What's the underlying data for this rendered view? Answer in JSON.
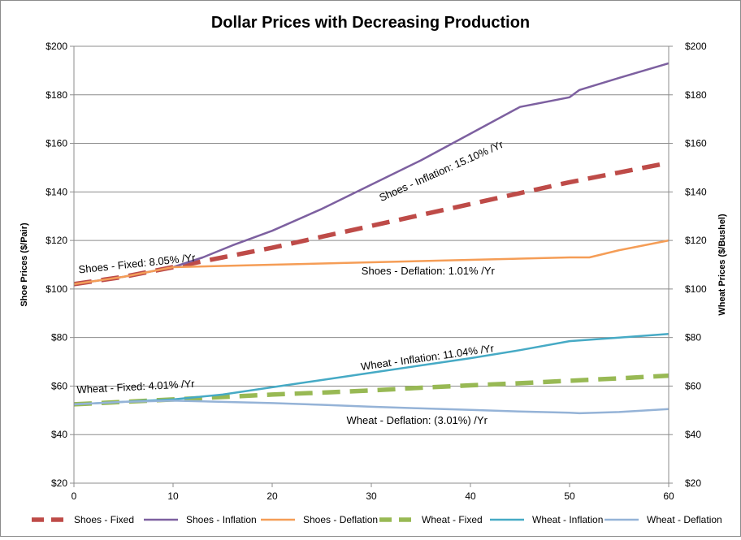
{
  "chart_data": {
    "type": "line",
    "title": "Dollar Prices with Decreasing Production",
    "ylabel_left": "Shoe Prices ($/Pair)",
    "ylabel_right": "Wheat Prices ($/Bushel)",
    "xlabel": "",
    "xlim": [
      0,
      60
    ],
    "ylim": [
      20,
      200
    ],
    "x_ticks": [
      "0",
      "10",
      "20",
      "30",
      "40",
      "50",
      "60"
    ],
    "y_ticks_left": [
      "$20",
      "$40",
      "$60",
      "$80",
      "$100",
      "$120",
      "$140",
      "$160",
      "$180",
      "$200"
    ],
    "y_ticks_right": [
      "$20",
      "$40",
      "$60",
      "$80",
      "$100",
      "$120",
      "$140",
      "$160",
      "$180",
      "$200"
    ],
    "grid": "horizontal",
    "legend_position": "bottom",
    "colors": {
      "shoes_fixed": "#be4b48",
      "shoes_inflation": "#7d60a0",
      "shoes_deflation": "#f59d56",
      "wheat_fixed": "#98b954",
      "wheat_inflation": "#46aac5",
      "wheat_deflation": "#95b3d7"
    },
    "series": [
      {
        "name": "Shoes - Fixed",
        "key": "shoes_fixed",
        "dashed": true,
        "x": [
          0,
          5,
          10,
          15,
          20,
          25,
          30,
          35,
          40,
          45,
          50,
          55,
          60
        ],
        "y": [
          102,
          105,
          109,
          113,
          117,
          121.5,
          126,
          130.5,
          135,
          139.5,
          144,
          148,
          152
        ]
      },
      {
        "name": "Shoes - Inflation",
        "key": "shoes_inflation",
        "dashed": false,
        "x": [
          0,
          5,
          10,
          13,
          16,
          20,
          25,
          30,
          35,
          40,
          45,
          50,
          51,
          55,
          60
        ],
        "y": [
          102,
          105,
          109,
          113,
          118,
          124,
          133,
          143,
          153,
          164,
          175,
          179,
          182,
          187,
          193
        ]
      },
      {
        "name": "Shoes - Deflation",
        "key": "shoes_deflation",
        "dashed": false,
        "x": [
          0,
          5,
          10,
          15,
          20,
          25,
          30,
          35,
          40,
          45,
          50,
          52,
          55,
          60
        ],
        "y": [
          102,
          105,
          109,
          109.5,
          110,
          110.5,
          111,
          111.5,
          112,
          112.5,
          113,
          113,
          116,
          120
        ]
      },
      {
        "name": "Wheat - Fixed",
        "key": "wheat_fixed",
        "dashed": true,
        "x": [
          0,
          5,
          10,
          15,
          20,
          25,
          30,
          35,
          40,
          45,
          50,
          55,
          60
        ],
        "y": [
          52.5,
          53.5,
          54.5,
          55.5,
          56.5,
          57.3,
          58.2,
          59.3,
          60.3,
          61.2,
          62.2,
          63.2,
          64.3
        ]
      },
      {
        "name": "Wheat - Inflation",
        "key": "wheat_inflation",
        "dashed": false,
        "x": [
          0,
          5,
          10,
          15,
          20,
          25,
          30,
          35,
          40,
          45,
          50,
          55,
          60
        ],
        "y": [
          52.5,
          53.5,
          54.5,
          56.5,
          59.5,
          62.5,
          65.5,
          68.5,
          71.5,
          74.8,
          78.5,
          80,
          81.5
        ]
      },
      {
        "name": "Wheat - Deflation",
        "key": "wheat_deflation",
        "dashed": false,
        "x": [
          0,
          5,
          10,
          15,
          20,
          25,
          30,
          35,
          40,
          45,
          50,
          51,
          55,
          60
        ],
        "y": [
          52.5,
          53.5,
          54,
          53.5,
          53,
          52.3,
          51.5,
          50.8,
          50.2,
          49.5,
          49,
          48.8,
          49.3,
          50.5
        ]
      }
    ],
    "annotations": [
      {
        "text": "Shoes - Inflation: 15.10%  /Yr",
        "x": 31,
        "y": 136,
        "rotate": -24
      },
      {
        "text": "Shoes - Fixed: 8.05%  /Yr",
        "x": 0.5,
        "y": 106.5,
        "rotate": -6
      },
      {
        "text": "Shoes - Deflation: 1.01%  /Yr",
        "x": 29,
        "y": 106,
        "rotate": 0
      },
      {
        "text": "Wheat - Inflation: 11.04%  /Yr",
        "x": 29,
        "y": 66.5,
        "rotate": -8
      },
      {
        "text": "Wheat - Fixed: 4.01%  /Yr",
        "x": 0.3,
        "y": 57,
        "rotate": -3
      },
      {
        "text": "Wheat - Deflation: (3.01%) /Yr",
        "x": 27.5,
        "y": 44.5,
        "rotate": 0
      }
    ]
  }
}
